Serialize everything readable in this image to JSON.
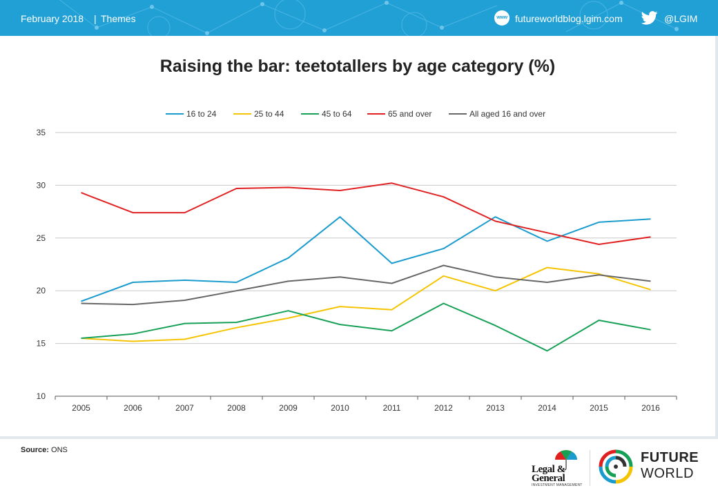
{
  "header": {
    "date": "February 2018",
    "separator": "|",
    "section": "Themes",
    "www_icon_text": "www",
    "blog_url": "futureworldblog.lgim.com",
    "twitter_handle": "@LGIM"
  },
  "colors": {
    "header_bg": "#21a0d6",
    "grid": "#c8c8c8",
    "axis": "#555555"
  },
  "icons": [
    "www-icon",
    "twitter-icon",
    "umbrella-icon",
    "future-world-icon"
  ],
  "chart_data": {
    "type": "line",
    "title": "Raising the bar: teetotallers by age category (%)",
    "xlabel": "",
    "ylabel": "",
    "ylim": [
      10,
      35
    ],
    "yticks": [
      10,
      15,
      20,
      25,
      30,
      35
    ],
    "categories": [
      "2005",
      "2006",
      "2007",
      "2008",
      "2009",
      "2010",
      "2011",
      "2012",
      "2013",
      "2014",
      "2015",
      "2016"
    ],
    "legend_position": "top",
    "grid": true,
    "series": [
      {
        "name": "16 to 24",
        "color": "#1a9bcd",
        "values": [
          19.0,
          20.8,
          21.0,
          20.8,
          23.1,
          27.0,
          22.6,
          24.0,
          27.0,
          24.7,
          26.5,
          26.8
        ]
      },
      {
        "name": "25 to 44",
        "color": "#f5c400",
        "values": [
          15.5,
          15.2,
          15.4,
          16.5,
          17.4,
          18.5,
          18.2,
          21.4,
          20.0,
          22.2,
          21.6,
          20.1
        ]
      },
      {
        "name": "45 to 64",
        "color": "#16a056",
        "values": [
          15.5,
          15.9,
          16.9,
          17.0,
          18.1,
          16.8,
          16.2,
          18.8,
          16.7,
          14.3,
          17.2,
          16.3
        ]
      },
      {
        "name": "65 and over",
        "color": "#e02020",
        "values": [
          29.3,
          27.4,
          27.4,
          29.7,
          29.8,
          29.5,
          30.2,
          28.9,
          26.6,
          25.5,
          24.4,
          25.1
        ]
      },
      {
        "name": "All aged 16 and over",
        "color": "#666666",
        "values": [
          18.8,
          18.7,
          19.1,
          20.0,
          20.9,
          21.3,
          20.7,
          22.4,
          21.3,
          20.8,
          21.5,
          20.9
        ]
      }
    ]
  },
  "footer": {
    "source_label": "Source:",
    "source_value": "ONS",
    "lg_name_line1": "Legal &",
    "lg_name_line2": "General",
    "lg_subtitle": "INVESTMENT MANAGEMENT",
    "future_world_line1": "FUTURE",
    "future_world_line2": "WORLD"
  }
}
